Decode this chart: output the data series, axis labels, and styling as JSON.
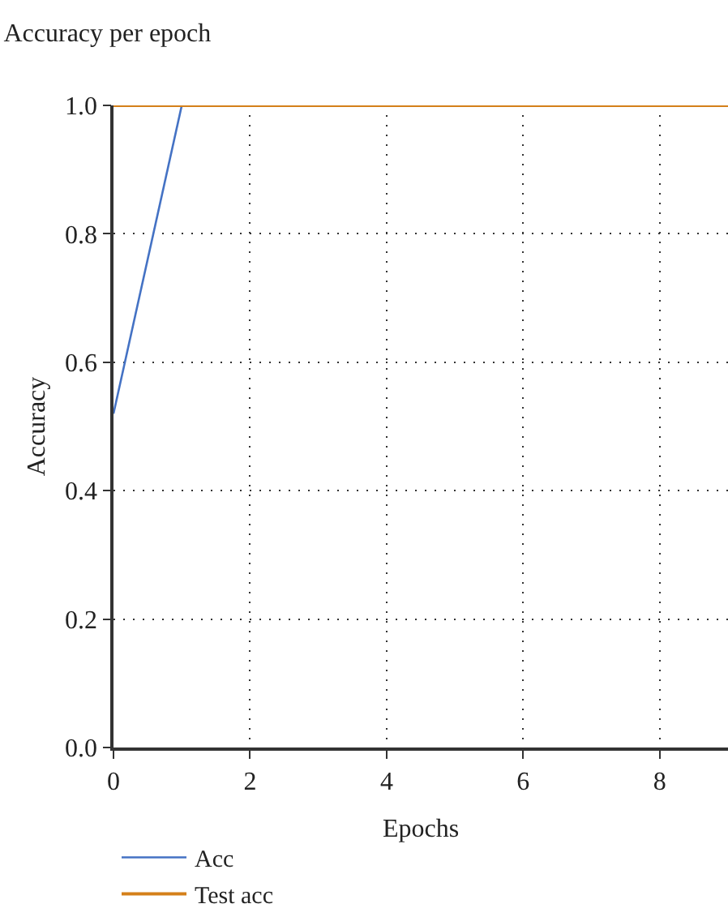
{
  "chart_data": {
    "type": "line",
    "title": "Accuracy per epoch",
    "xlabel": "Epochs",
    "ylabel": "Accuracy",
    "x": [
      0,
      1,
      2,
      3,
      4,
      5,
      6,
      7,
      8,
      9
    ],
    "series": [
      {
        "name": "Acc",
        "color": "#4472c4",
        "values": [
          0.52,
          1.0,
          null,
          null,
          null,
          null,
          null,
          null,
          null,
          null
        ]
      },
      {
        "name": "Test acc",
        "color": "#d4801a",
        "values": [
          1.0,
          1.0,
          1.0,
          1.0,
          1.0,
          1.0,
          1.0,
          1.0,
          1.0,
          1.0
        ]
      }
    ],
    "xlim": [
      0,
      9
    ],
    "xticks": [
      0,
      2,
      4,
      6,
      8
    ],
    "ylim": [
      0,
      1
    ],
    "yticks": [
      {
        "value": 0,
        "label": "0.0"
      },
      {
        "value": 0.2,
        "label": "0.2"
      },
      {
        "value": 0.4,
        "label": "0.4"
      },
      {
        "value": 0.6,
        "label": "0.6"
      },
      {
        "value": 0.8,
        "label": "0.8"
      },
      {
        "value": 1,
        "label": "1.0"
      }
    ],
    "grid": true,
    "legend": "bottom",
    "marker": "none",
    "line_style": "solid"
  }
}
